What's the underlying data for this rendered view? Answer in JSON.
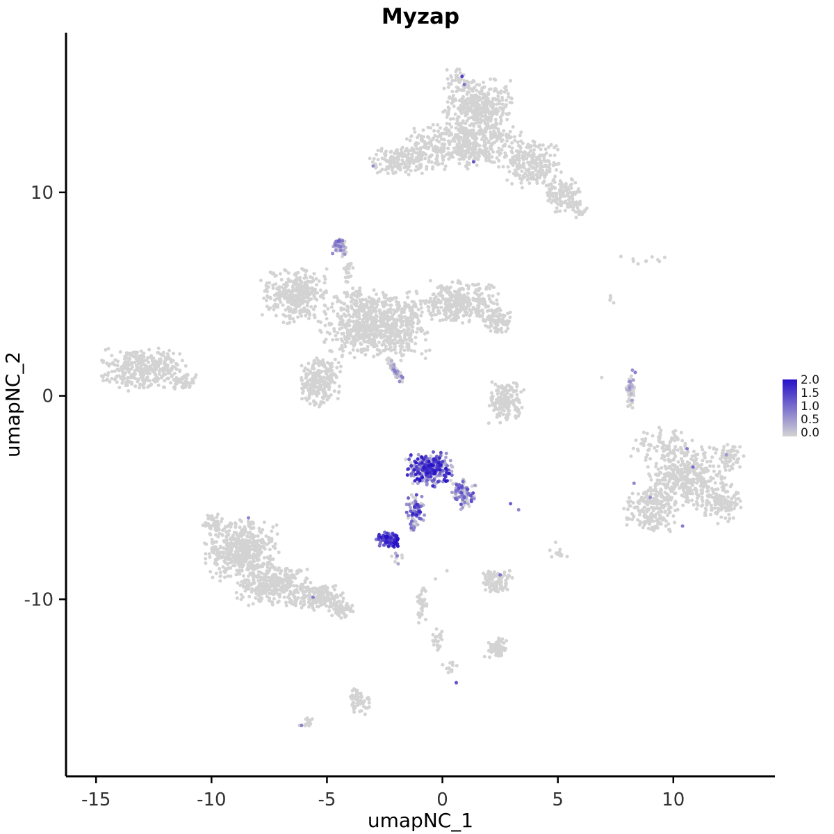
{
  "figure": {
    "background": "#ffffff"
  },
  "chart_data": {
    "type": "scatter",
    "title": "Myzap",
    "xlabel": "umapNC_1",
    "ylabel": "umapNC_2",
    "xlim": [
      -16.3,
      14.4
    ],
    "ylim": [
      -18.7,
      17.85
    ],
    "x_ticks": [
      -15,
      -10,
      -5,
      0,
      5,
      10
    ],
    "y_ticks": [
      10,
      0,
      -10
    ],
    "grid": false,
    "point_color_low": "#D3D3D3",
    "point_color_high": "#2711C7",
    "value_range": [
      0.0,
      2.0
    ],
    "legend": {
      "position": "right",
      "labels": [
        "2.0",
        "1.5",
        "1.0",
        "0.5",
        "0.0"
      ],
      "values": [
        2.0,
        1.5,
        1.0,
        0.5,
        0.0
      ]
    },
    "clusters": [
      {
        "x": 1.5,
        "y": 14.2,
        "rx": 1.7,
        "ry": 1.5,
        "n": 380
      },
      {
        "x": 1.0,
        "y": 12.3,
        "rx": 2.7,
        "ry": 1.2,
        "n": 420
      },
      {
        "x": -1.7,
        "y": 11.6,
        "rx": 1.7,
        "ry": 0.8,
        "n": 170
      },
      {
        "x": 3.9,
        "y": 11.4,
        "rx": 1.3,
        "ry": 1.2,
        "n": 220
      },
      {
        "x": 5.2,
        "y": 9.9,
        "rx": 0.9,
        "ry": 1.0,
        "n": 110
      },
      {
        "x": 5.9,
        "y": 9.2,
        "rx": 0.5,
        "ry": 0.5,
        "n": 25
      },
      {
        "x": 0.6,
        "y": 15.6,
        "rx": 0.5,
        "ry": 0.5,
        "n": 30
      },
      {
        "x": -4.45,
        "y": 7.35,
        "rx": 0.4,
        "ry": 0.55,
        "n": 50,
        "expr": [
          0.55,
          0.2,
          1.1
        ]
      },
      {
        "x": -4.1,
        "y": 6.1,
        "rx": 0.3,
        "ry": 0.6,
        "n": 22
      },
      {
        "x": -3.75,
        "y": 5.0,
        "rx": 0.3,
        "ry": 0.6,
        "n": 22
      },
      {
        "x": -6.4,
        "y": 4.9,
        "rx": 1.5,
        "ry": 1.5,
        "n": 330
      },
      {
        "x": -2.9,
        "y": 3.5,
        "rx": 2.5,
        "ry": 1.8,
        "n": 760
      },
      {
        "x": 0.7,
        "y": 4.6,
        "rx": 1.9,
        "ry": 1.1,
        "n": 320
      },
      {
        "x": 2.4,
        "y": 3.7,
        "rx": 0.7,
        "ry": 0.7,
        "n": 90
      },
      {
        "x": -5.3,
        "y": 0.7,
        "rx": 1.0,
        "ry": 1.3,
        "n": 250
      },
      {
        "x": -2.05,
        "y": 1.25,
        "rx": 0.75,
        "ry": 0.16,
        "n": 55,
        "rot": -61,
        "expr": [
          0.45,
          0.2,
          0.9
        ]
      },
      {
        "x": -12.9,
        "y": 1.3,
        "rx": 2.0,
        "ry": 1.1,
        "n": 340
      },
      {
        "x": -11.2,
        "y": 0.7,
        "rx": 0.6,
        "ry": 0.4,
        "n": 40
      },
      {
        "x": 2.8,
        "y": -0.3,
        "rx": 0.85,
        "ry": 1.1,
        "n": 160
      },
      {
        "x": 8.15,
        "y": 0.3,
        "rx": 0.2,
        "ry": 1.0,
        "n": 55,
        "expr": [
          0.3,
          0.2,
          0.9
        ]
      },
      {
        "x": 8.6,
        "y": 6.6,
        "rx": 1.4,
        "ry": 0.3,
        "n": 10
      },
      {
        "x": 7.3,
        "y": 4.8,
        "rx": 0.3,
        "ry": 0.5,
        "n": 5
      },
      {
        "x": -0.55,
        "y": -3.6,
        "rx": 1.05,
        "ry": 0.9,
        "n": 280,
        "expr": [
          0.85,
          0.2,
          2.0
        ]
      },
      {
        "x": 0.9,
        "y": -4.8,
        "rx": 0.6,
        "ry": 0.8,
        "n": 100,
        "expr": [
          0.6,
          0.1,
          1.4
        ]
      },
      {
        "x": -1.15,
        "y": -5.5,
        "rx": 0.45,
        "ry": 0.7,
        "n": 60,
        "expr": [
          0.7,
          0.2,
          1.8
        ]
      },
      {
        "x": -1.3,
        "y": -6.3,
        "rx": 0.25,
        "ry": 0.45,
        "n": 18,
        "expr": [
          0.6,
          0.2,
          1.2
        ]
      },
      {
        "x": -2.35,
        "y": -7.1,
        "rx": 0.55,
        "ry": 0.42,
        "n": 95,
        "expr": [
          0.92,
          0.6,
          2.0
        ]
      },
      {
        "x": -2.0,
        "y": -8.0,
        "rx": 0.3,
        "ry": 0.4,
        "n": 10,
        "expr": [
          0.4,
          0.2,
          0.9
        ]
      },
      {
        "x": 10.6,
        "y": -4.0,
        "rx": 2.0,
        "ry": 1.7,
        "n": 430
      },
      {
        "x": 9.0,
        "y": -5.6,
        "rx": 1.3,
        "ry": 1.2,
        "n": 200
      },
      {
        "x": 12.1,
        "y": -5.3,
        "rx": 0.9,
        "ry": 1.0,
        "n": 110
      },
      {
        "x": 9.5,
        "y": -2.3,
        "rx": 1.4,
        "ry": 0.8,
        "n": 70
      },
      {
        "x": 12.5,
        "y": -3.0,
        "rx": 0.6,
        "ry": 0.7,
        "n": 50
      },
      {
        "x": -8.7,
        "y": -7.6,
        "rx": 1.7,
        "ry": 1.6,
        "n": 480
      },
      {
        "x": -7.3,
        "y": -9.3,
        "rx": 1.7,
        "ry": 1.1,
        "n": 300
      },
      {
        "x": -5.3,
        "y": -9.9,
        "rx": 1.2,
        "ry": 0.7,
        "n": 170
      },
      {
        "x": -4.4,
        "y": -10.5,
        "rx": 0.55,
        "ry": 0.45,
        "n": 60
      },
      {
        "x": -9.9,
        "y": -6.3,
        "rx": 0.5,
        "ry": 0.5,
        "n": 40
      },
      {
        "x": 2.35,
        "y": -9.1,
        "rx": 0.75,
        "ry": 0.65,
        "n": 90
      },
      {
        "x": 5.0,
        "y": -7.8,
        "rx": 0.45,
        "ry": 0.35,
        "n": 10
      },
      {
        "x": -0.9,
        "y": -10.3,
        "rx": 0.22,
        "ry": 1.0,
        "n": 40
      },
      {
        "x": -0.2,
        "y": -11.9,
        "rx": 0.3,
        "ry": 0.65,
        "n": 22
      },
      {
        "x": 2.35,
        "y": -12.4,
        "rx": 0.55,
        "ry": 0.55,
        "n": 70
      },
      {
        "x": -3.6,
        "y": -15.0,
        "rx": 0.5,
        "ry": 0.75,
        "n": 55
      },
      {
        "x": -5.9,
        "y": -16.1,
        "rx": 0.4,
        "ry": 0.28,
        "n": 18
      },
      {
        "x": 0.3,
        "y": -13.3,
        "rx": 0.35,
        "ry": 0.5,
        "n": 12
      }
    ],
    "singles": [
      [
        0.85,
        15.7,
        1.5
      ],
      [
        0.95,
        15.3,
        1.0
      ],
      [
        1.35,
        11.5,
        1.3
      ],
      [
        -3.0,
        11.3,
        0.7
      ],
      [
        8.35,
        1.15,
        0.9
      ],
      [
        10.6,
        -2.6,
        0.9
      ],
      [
        10.85,
        -3.5,
        1.1
      ],
      [
        8.3,
        -4.3,
        0.8
      ],
      [
        10.4,
        -6.4,
        0.9
      ],
      [
        9.0,
        -5.0,
        0.7
      ],
      [
        12.3,
        -2.9,
        0.6
      ],
      [
        -8.4,
        -6.0,
        0.8
      ],
      [
        -5.6,
        -9.9,
        0.9
      ],
      [
        2.5,
        -8.8,
        1.0
      ],
      [
        2.95,
        -5.3,
        1.2
      ],
      [
        3.3,
        -5.6,
        0.8
      ],
      [
        0.6,
        -14.1,
        1.3
      ],
      [
        -6.1,
        -16.2,
        0.8
      ],
      [
        -4.5,
        7.6,
        1.2
      ],
      [
        4.9,
        -7.2,
        0
      ],
      [
        5.4,
        -7.9,
        0
      ],
      [
        6.9,
        0.9,
        0
      ],
      [
        -0.3,
        -9.0,
        0
      ],
      [
        0.2,
        -8.6,
        0
      ]
    ]
  }
}
